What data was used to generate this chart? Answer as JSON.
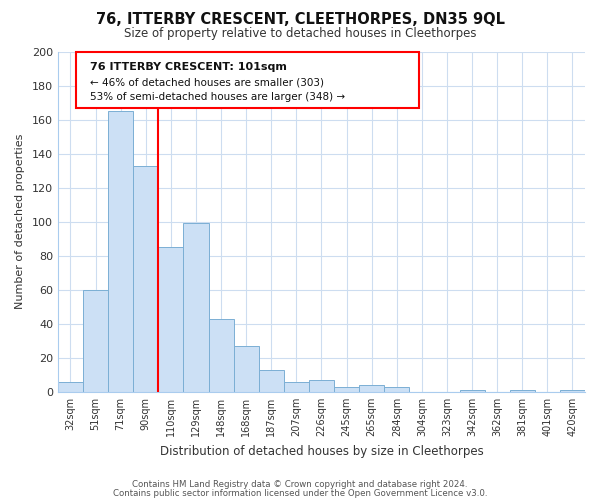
{
  "title": "76, ITTERBY CRESCENT, CLEETHORPES, DN35 9QL",
  "subtitle": "Size of property relative to detached houses in Cleethorpes",
  "xlabel": "Distribution of detached houses by size in Cleethorpes",
  "ylabel": "Number of detached properties",
  "bin_labels": [
    "32sqm",
    "51sqm",
    "71sqm",
    "90sqm",
    "110sqm",
    "129sqm",
    "148sqm",
    "168sqm",
    "187sqm",
    "207sqm",
    "226sqm",
    "245sqm",
    "265sqm",
    "284sqm",
    "304sqm",
    "323sqm",
    "342sqm",
    "362sqm",
    "381sqm",
    "401sqm",
    "420sqm"
  ],
  "bar_values": [
    6,
    60,
    165,
    133,
    85,
    99,
    43,
    27,
    13,
    6,
    7,
    3,
    4,
    3,
    0,
    0,
    1,
    0,
    1,
    0,
    1
  ],
  "bar_color": "#cce0f5",
  "bar_edge_color": "#7bafd4",
  "ylim": [
    0,
    200
  ],
  "yticks": [
    0,
    20,
    40,
    60,
    80,
    100,
    120,
    140,
    160,
    180,
    200
  ],
  "annotation_title": "76 ITTERBY CRESCENT: 101sqm",
  "annotation_line1": "← 46% of detached houses are smaller (303)",
  "annotation_line2": "53% of semi-detached houses are larger (348) →",
  "footer_line1": "Contains HM Land Registry data © Crown copyright and database right 2024.",
  "footer_line2": "Contains public sector information licensed under the Open Government Licence v3.0.",
  "background_color": "#ffffff",
  "grid_color": "#cdddf0"
}
